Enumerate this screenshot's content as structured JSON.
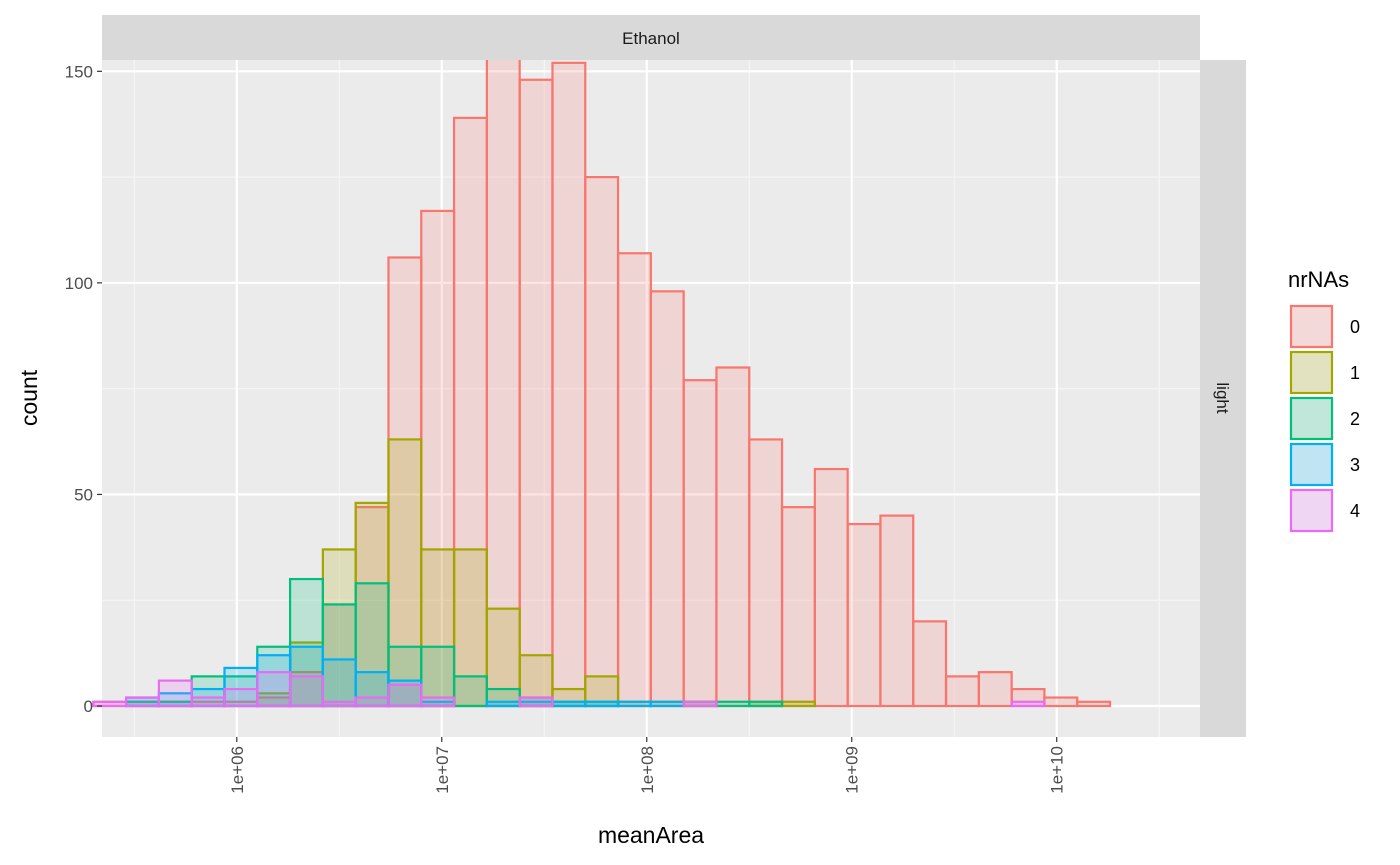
{
  "chart_data": {
    "type": "bar",
    "facet_col": "Ethanol",
    "facet_row": "light",
    "xlabel": "meanArea",
    "ylabel": "count",
    "x_scale": "log10",
    "xlim": [
      220000,
      50000000000
    ],
    "ylim": [
      0,
      160
    ],
    "x_breaks": [
      1000000,
      10000000,
      100000000,
      1000000000,
      10000000000
    ],
    "x_tick_labels": [
      "1e+06",
      "1e+07",
      "1e+08",
      "1e+09",
      "1e+10"
    ],
    "y_breaks": [
      0,
      50,
      100,
      150
    ],
    "y_tick_labels": [
      "0",
      "50",
      "100",
      "150"
    ],
    "grid": true,
    "legend": {
      "title": "nrNAs",
      "position": "right"
    },
    "bin_edges_log10": [
      5.3,
      5.46,
      5.62,
      5.78,
      5.94,
      6.1,
      6.26,
      6.42,
      6.58,
      6.74,
      6.9,
      7.06,
      7.22,
      7.38,
      7.54,
      7.7,
      7.86,
      8.02,
      8.18,
      8.34,
      8.5,
      8.66,
      8.82,
      8.98,
      9.14,
      9.3,
      9.46,
      9.62,
      9.78,
      9.94,
      10.1,
      10.26
    ],
    "series": [
      {
        "name": "0",
        "color": "#F8766D",
        "values": [
          1,
          1,
          1,
          1,
          1,
          2,
          8,
          24,
          47,
          106,
          117,
          139,
          156,
          148,
          152,
          125,
          107,
          98,
          77,
          80,
          63,
          47,
          56,
          43,
          45,
          20,
          7,
          8,
          4,
          2,
          1
        ]
      },
      {
        "name": "1",
        "color": "#A3A500",
        "values": [
          0,
          0,
          0,
          0,
          0,
          3,
          15,
          37,
          48,
          63,
          37,
          37,
          23,
          12,
          4,
          7,
          1,
          1,
          1,
          0,
          1,
          1,
          0,
          0,
          0,
          0,
          0,
          0,
          0,
          0,
          0
        ]
      },
      {
        "name": "2",
        "color": "#00BF7D",
        "values": [
          0,
          1,
          1,
          7,
          7,
          14,
          30,
          24,
          29,
          14,
          14,
          7,
          4,
          2,
          1,
          1,
          0,
          0,
          1,
          1,
          1,
          0,
          0,
          0,
          0,
          0,
          0,
          0,
          0,
          0,
          0
        ]
      },
      {
        "name": "3",
        "color": "#00B0F6",
        "values": [
          0,
          2,
          3,
          4,
          9,
          12,
          14,
          11,
          8,
          6,
          1,
          0,
          1,
          1,
          1,
          1,
          1,
          1,
          0,
          0,
          0,
          0,
          0,
          0,
          0,
          0,
          0,
          0,
          0,
          0,
          0
        ]
      },
      {
        "name": "4",
        "color": "#E76BF3",
        "values": [
          1,
          2,
          6,
          2,
          4,
          8,
          7,
          1,
          2,
          5,
          2,
          0,
          0,
          2,
          0,
          0,
          0,
          0,
          1,
          0,
          0,
          0,
          0,
          0,
          0,
          0,
          0,
          0,
          1,
          0,
          0
        ]
      }
    ]
  }
}
